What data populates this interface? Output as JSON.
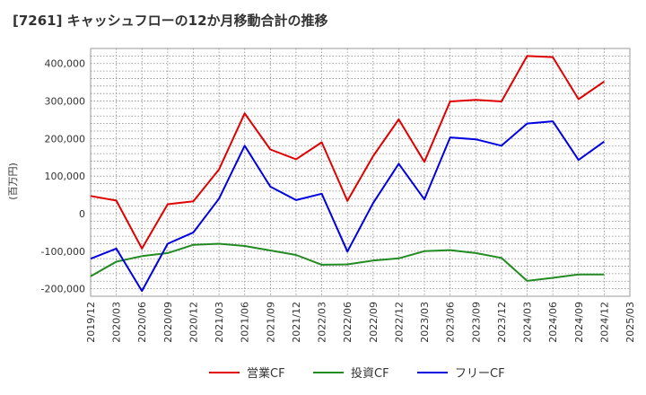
{
  "chart_data": {
    "type": "line",
    "title": "[7261]  キャッシュフローの12か月移動合計の推移",
    "ylabel": "(百万円)",
    "xlabel": "",
    "ylim": [
      -220000,
      440000
    ],
    "yticks": [
      -200000,
      -100000,
      0,
      100000,
      200000,
      300000,
      400000
    ],
    "ytick_labels": [
      "-200,000",
      "-100,000",
      "0",
      "100,000",
      "200,000",
      "300,000",
      "400,000"
    ],
    "categories": [
      "2019/12",
      "2020/03",
      "2020/06",
      "2020/09",
      "2020/12",
      "2021/03",
      "2021/06",
      "2021/09",
      "2021/12",
      "2022/03",
      "2022/06",
      "2022/09",
      "2022/12",
      "2023/03",
      "2023/06",
      "2023/09",
      "2023/12",
      "2024/03",
      "2024/06",
      "2024/09",
      "2024/12",
      "2025/03"
    ],
    "grid": true,
    "legend_position": "bottom",
    "series": [
      {
        "name": "営業CF",
        "color": "#e00000",
        "values": [
          47000,
          35000,
          -93000,
          25000,
          33000,
          118000,
          267000,
          171000,
          145000,
          190000,
          34000,
          153000,
          251000,
          138000,
          299000,
          303000,
          299000,
          420000,
          417000,
          305000,
          352000,
          null
        ]
      },
      {
        "name": "投資CF",
        "color": "#228b22",
        "values": [
          -167000,
          -128000,
          -113000,
          -105000,
          -83000,
          -80000,
          -86000,
          -98000,
          -110000,
          -136000,
          -135000,
          -125000,
          -119000,
          -100000,
          -97000,
          -105000,
          -118000,
          -179000,
          -171000,
          -162000,
          -162000,
          null
        ]
      },
      {
        "name": "フリーCF",
        "color": "#0000e0",
        "values": [
          -120000,
          -93000,
          -206000,
          -80000,
          -50000,
          40000,
          181000,
          72000,
          36000,
          53000,
          -101000,
          28000,
          133000,
          38000,
          203000,
          198000,
          181000,
          240000,
          246000,
          143000,
          192000,
          null
        ]
      }
    ]
  }
}
